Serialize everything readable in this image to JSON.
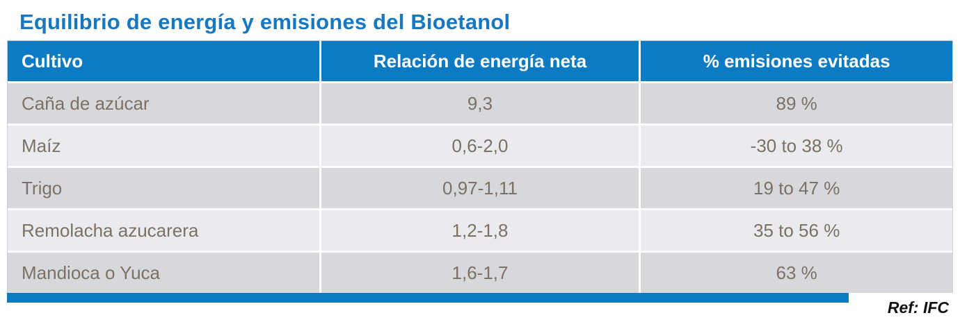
{
  "title": "Equilibrio de energía y emisiones del Bioetanol",
  "footer": {
    "ref": "Ref: IFC"
  },
  "colors": {
    "title_color": "#1777c0",
    "header_bg": "#0d7bc4",
    "row_odd_bg": "#d6d8db",
    "row_even_bg": "#e9ebee",
    "body_text_color": "#7c7164"
  },
  "chart_data": {
    "type": "table",
    "title": "Equilibrio de energía y emisiones del Bioetanol",
    "columns": [
      "Cultivo",
      "Relación de energía neta",
      "% emisiones evitadas"
    ],
    "rows": [
      [
        "Caña de azúcar",
        "9,3",
        "89 %"
      ],
      [
        "Maíz",
        "0,6-2,0",
        "-30 to 38 %"
      ],
      [
        "Trigo",
        "0,97-1,11",
        "19 to 47 %"
      ],
      [
        "Remolacha azucarera",
        "1,2-1,8",
        "35 to 56 %"
      ],
      [
        "Mandioca o Yuca",
        "1,6-1,7",
        "63 %"
      ]
    ],
    "layout": {
      "col0_align": "left",
      "col1_align": "center",
      "col2_align": "center",
      "striped": true
    },
    "source": "Ref: IFC"
  }
}
